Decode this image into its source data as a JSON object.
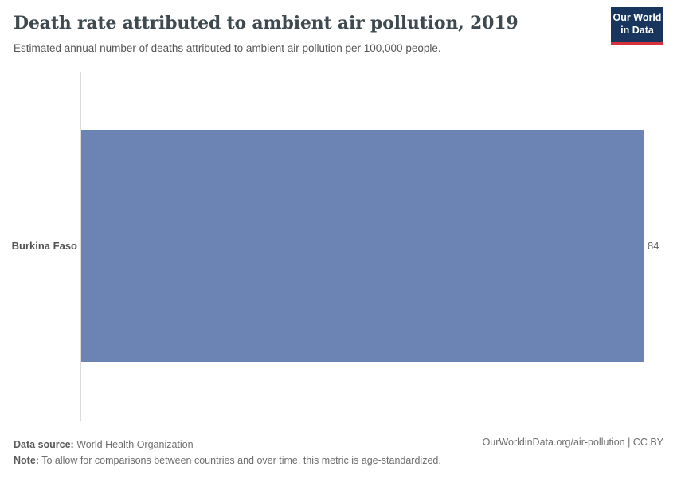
{
  "header": {
    "title": "Death rate attributed to ambient air pollution, 2019",
    "subtitle": "Estimated annual number of deaths attributed to ambient air pollution per 100,000 people.",
    "logo": {
      "line1": "Our World",
      "line2": "in Data"
    }
  },
  "chart_data": {
    "type": "bar",
    "orientation": "horizontal",
    "title": "Death rate attributed to ambient air pollution, 2019",
    "subtitle": "Estimated annual number of deaths attributed to ambient air pollution per 100,000 people.",
    "categories": [
      "Burkina Faso"
    ],
    "values": [
      84
    ],
    "value_labels": [
      "84"
    ],
    "xlabel": "",
    "ylabel": "",
    "xlim": [
      0,
      84
    ],
    "grid": false,
    "legend": false
  },
  "footer": {
    "datasource_label": "Data source:",
    "datasource_value": " World Health Organization",
    "note_label": "Note:",
    "note_value": " To allow for comparisons between countries and over time, this metric is age-standardized.",
    "link": "OurWorldinData.org/air-pollution | CC BY"
  },
  "colors": {
    "bar": "#6c84b4",
    "logo_bg": "#18365d",
    "logo_stripe": "#d8323d",
    "title": "#3f4a50",
    "text": "#555555",
    "axis": "#dcdcdc"
  }
}
